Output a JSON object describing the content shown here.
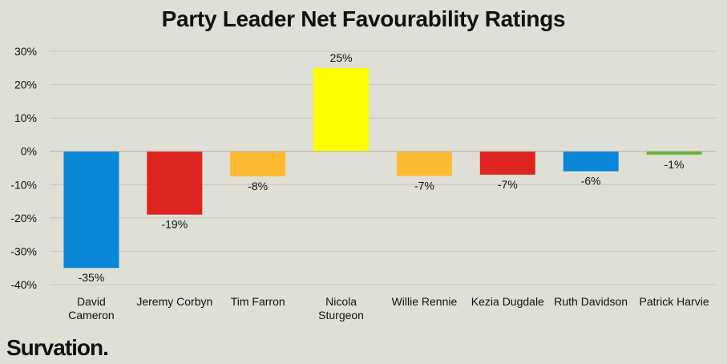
{
  "brand": "Survation.",
  "chart_data": {
    "type": "bar",
    "title": "Party Leader Net Favourability Ratings",
    "xlabel": "",
    "ylabel": "",
    "categories": [
      [
        "David",
        "Cameron"
      ],
      [
        "Jeremy Corbyn"
      ],
      [
        "Tim Farron"
      ],
      [
        "Nicola",
        "Sturgeon"
      ],
      [
        "Willie Rennie"
      ],
      [
        "Kezia Dugdale"
      ],
      [
        "Ruth Davidson"
      ],
      [
        "Patrick Harvie"
      ]
    ],
    "values": [
      -35,
      -19,
      -7.5,
      25,
      -7.4,
      -7,
      -6,
      -1
    ],
    "data_labels": [
      "-35%",
      "-19%",
      "-8%",
      "25%",
      "-7%",
      "-7%",
      "-6%",
      "-1%"
    ],
    "colors": [
      "#0a86d6",
      "#dd241f",
      "#fcba32",
      "#ffff00",
      "#fcba32",
      "#dd241f",
      "#0a86d6",
      "#6ab42e"
    ],
    "ylim": [
      -40,
      30
    ],
    "yticks": [
      30,
      20,
      10,
      0,
      -10,
      -20,
      -30,
      -40
    ],
    "ytick_labels": [
      "30%",
      "20%",
      "10%",
      "0%",
      "-10%",
      "-20%",
      "-30%",
      "-40%"
    ],
    "grid": true,
    "legend": "none"
  }
}
